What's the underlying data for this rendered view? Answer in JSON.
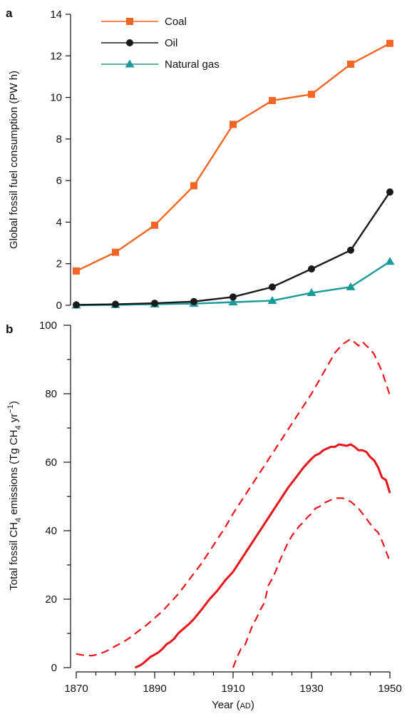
{
  "chart_data": [
    {
      "panel": "a",
      "type": "line",
      "ylabel": "Global fossil fuel consumption (PW h)",
      "ylim": [
        0,
        14
      ],
      "yticks": [
        0,
        2,
        4,
        6,
        8,
        10,
        12,
        14
      ],
      "xlim": [
        1870,
        1950
      ],
      "legend_position": "top-left",
      "grid": false,
      "x": [
        1870,
        1880,
        1890,
        1900,
        1910,
        1920,
        1930,
        1940,
        1950
      ],
      "series": [
        {
          "name": "Coal",
          "color": "#f26522",
          "marker": "square",
          "values": [
            1.65,
            2.55,
            3.85,
            5.75,
            8.7,
            9.85,
            10.15,
            11.6,
            12.6
          ]
        },
        {
          "name": "Oil",
          "color": "#1a1a1a",
          "marker": "circle",
          "values": [
            0.02,
            0.05,
            0.1,
            0.18,
            0.4,
            0.88,
            1.75,
            2.65,
            5.45
          ]
        },
        {
          "name": "Natural gas",
          "color": "#1a9a9a",
          "marker": "triangle",
          "values": [
            0.0,
            0.02,
            0.05,
            0.08,
            0.15,
            0.22,
            0.6,
            0.88,
            2.1
          ]
        }
      ]
    },
    {
      "panel": "b",
      "type": "line",
      "xlabel_main": "Year (",
      "xlabel_sub": "AD",
      "xlabel_end": ")",
      "ylabel_parts": [
        "Total fossil CH",
        "4",
        " emissions (Tg CH",
        "4",
        " yr",
        "−1",
        ")"
      ],
      "ylim": [
        0,
        100
      ],
      "yticks": [
        0,
        20,
        40,
        60,
        80,
        100
      ],
      "xlim": [
        1870,
        1950
      ],
      "xticks": [
        1870,
        1890,
        1910,
        1930,
        1950
      ],
      "grid": false,
      "color": "#e8151b",
      "series": [
        {
          "style": "solid",
          "x": [
            1885,
            1886,
            1887,
            1888,
            1889,
            1890,
            1891,
            1892,
            1893,
            1894,
            1895,
            1896,
            1897,
            1898,
            1899,
            1900,
            1902,
            1904,
            1906,
            1908,
            1910,
            1912,
            1914,
            1916,
            1918,
            1920,
            1922,
            1924,
            1926,
            1928,
            1930,
            1931,
            1932,
            1933,
            1934,
            1935,
            1936,
            1937,
            1938,
            1939,
            1940,
            1941,
            1942,
            1943,
            1944,
            1945,
            1946,
            1947,
            1948,
            1949,
            1950
          ],
          "values": [
            0,
            0.5,
            1.2,
            2.2,
            3.2,
            3.8,
            4.5,
            5.5,
            6.8,
            7.5,
            8.5,
            10,
            11,
            12,
            13,
            14.2,
            17,
            20,
            22.5,
            25.5,
            28,
            31.5,
            35,
            38.5,
            42,
            45.5,
            49,
            52.5,
            55.5,
            58.5,
            61,
            62,
            62.5,
            63.5,
            64,
            64.5,
            64.5,
            65.2,
            65,
            64.8,
            65.2,
            64.5,
            63.5,
            63.5,
            63,
            61.5,
            60.5,
            58.5,
            55.5,
            54.8,
            51
          ]
        },
        {
          "style": "dashed",
          "x": [
            1870,
            1872,
            1874,
            1876,
            1878,
            1880,
            1882,
            1884,
            1886,
            1888,
            1890,
            1892,
            1894,
            1896,
            1898,
            1900,
            1902,
            1904,
            1906,
            1908,
            1910,
            1912,
            1914,
            1916,
            1918,
            1920,
            1922,
            1924,
            1926,
            1928,
            1930,
            1932,
            1934,
            1936,
            1938,
            1940,
            1941,
            1942,
            1943,
            1944,
            1945,
            1946,
            1947,
            1948,
            1949,
            1950
          ],
          "values": [
            4,
            3.6,
            3.5,
            4,
            5,
            6.3,
            7.5,
            9,
            10.8,
            12.5,
            14.5,
            16.5,
            19,
            21.5,
            24.5,
            27.5,
            30.5,
            34,
            37.5,
            41,
            45,
            48.5,
            52,
            55.5,
            59,
            62.5,
            66,
            69.5,
            73,
            76.5,
            80,
            84,
            88,
            92,
            94.5,
            96,
            95,
            94,
            95.2,
            94,
            93,
            91.5,
            89,
            86.5,
            83,
            79.5
          ]
        },
        {
          "style": "dashed",
          "x": [
            1910,
            1911,
            1912,
            1913,
            1914,
            1915,
            1916,
            1917,
            1918,
            1919,
            1920,
            1921,
            1922,
            1923,
            1924,
            1925,
            1926,
            1927,
            1928,
            1929,
            1930,
            1931,
            1932,
            1933,
            1934,
            1935,
            1936,
            1937,
            1938,
            1939,
            1940,
            1941,
            1942,
            1943,
            1944,
            1945,
            1946,
            1947,
            1948,
            1949,
            1950
          ],
          "values": [
            0,
            3,
            5.5,
            6.5,
            9.5,
            12.5,
            14.5,
            17,
            19,
            24,
            26,
            28.5,
            31.5,
            34,
            36.5,
            38.5,
            40,
            41.5,
            42.5,
            44,
            45,
            46.5,
            47,
            48,
            48.5,
            49,
            49.5,
            49.5,
            49.5,
            49,
            48.5,
            47.5,
            46.5,
            45,
            43.5,
            42,
            40.5,
            39.5,
            37,
            34,
            31
          ]
        }
      ]
    }
  ]
}
